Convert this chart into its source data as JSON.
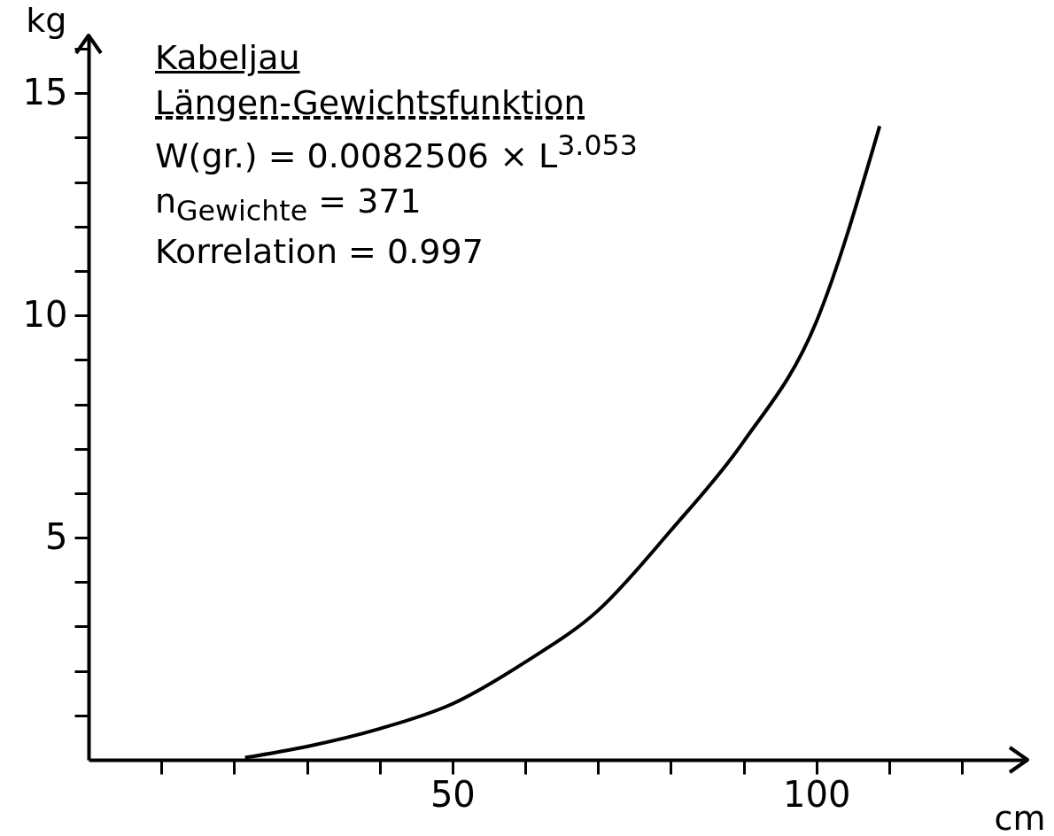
{
  "chart_data": {
    "type": "line",
    "title": "Kabeljau",
    "subtitle": "Längen-Gewichtsfunktion",
    "annotations": [
      "W(gr.) = 0.0082506 × L$^{3.053}$",
      "n$_{Gewichte}$ = 371",
      "Korrelation = 0.997"
    ],
    "xlabel": "cm",
    "ylabel": "kg",
    "x": [
      21.5,
      30,
      40,
      50,
      60,
      70,
      80,
      90,
      100,
      108.7
    ],
    "series": [
      {
        "color": "#000000",
        "values": [
          0.05,
          0.3,
          0.7,
          1.26,
          2.2,
          3.36,
          5.16,
          7.16,
          9.86,
          14.26
        ]
      }
    ],
    "xlim": [
      0,
      129
    ],
    "ylim": [
      0,
      16.3
    ],
    "xticks": [
      {
        "value": 10,
        "label": null
      },
      {
        "value": 20,
        "label": null
      },
      {
        "value": 30,
        "label": null
      },
      {
        "value": 40,
        "label": null
      },
      50,
      {
        "value": 60,
        "label": null
      },
      {
        "value": 70,
        "label": null
      },
      {
        "value": 80,
        "label": null
      },
      {
        "value": 90,
        "label": null
      },
      100,
      {
        "value": 110,
        "label": null
      },
      {
        "value": 120,
        "label": null
      }
    ],
    "yticks": [
      {
        "value": 1,
        "label": null
      },
      {
        "value": 2,
        "label": null
      },
      {
        "value": 3,
        "label": null
      },
      {
        "value": 4,
        "label": null
      },
      5,
      {
        "value": 6,
        "label": null
      },
      {
        "value": 7,
        "label": null
      },
      {
        "value": 8,
        "label": null
      },
      {
        "value": 9,
        "label": null
      },
      10,
      {
        "value": 11,
        "label": null
      },
      {
        "value": 12,
        "label": null
      },
      {
        "value": 13,
        "label": null
      },
      {
        "value": 14,
        "label": null
      },
      15,
      {
        "value": 16,
        "label": null
      }
    ],
    "grid": false,
    "marker": "none",
    "line_style": "solid"
  }
}
